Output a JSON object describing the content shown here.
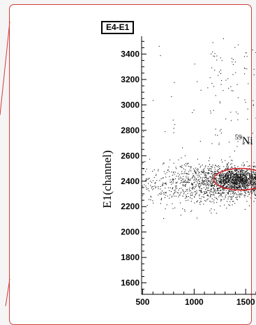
{
  "chart_data": {
    "type": "scatter",
    "title": "E4-E1",
    "xlabel": "",
    "ylabel": "E1(channel)",
    "xlim": [
      490,
      1600
    ],
    "ylim": [
      1510,
      3540
    ],
    "x_ticks": [
      500,
      1000,
      1500
    ],
    "x_tick_labels": [
      "500",
      "1000",
      "1500"
    ],
    "y_ticks": [
      1600,
      1800,
      2000,
      2200,
      2400,
      2600,
      2800,
      3000,
      3200,
      3400
    ],
    "y_tick_labels": [
      "1600",
      "1800",
      "2000",
      "2200",
      "2400",
      "2600",
      "2800",
      "3000",
      "3200",
      "3400"
    ],
    "grid": false,
    "annotations": [
      {
        "mass": "59",
        "element": "Ni",
        "x": 1395,
        "y": 2690
      }
    ],
    "gate_ellipse": {
      "cx": 1450,
      "cy": 2415,
      "rx": 260,
      "ry": 85
    },
    "clusters": [
      {
        "name": "dense-core",
        "cx": 1430,
        "cy": 2410,
        "sx": 170,
        "sy": 48,
        "n": 1400
      },
      {
        "name": "band",
        "cx": 1100,
        "cy": 2380,
        "sx": 380,
        "sy": 90,
        "n": 1000
      },
      {
        "name": "upper-scatter",
        "xmin": 1150,
        "xmax": 1600,
        "ymin": 2600,
        "ymax": 3540,
        "n": 90
      },
      {
        "name": "left-scatter",
        "xmin": 500,
        "xmax": 1150,
        "ymin": 2150,
        "ymax": 3500,
        "n": 25
      }
    ],
    "colors": {
      "points": "#111111",
      "gate": "#d0282c",
      "frame": "#000000"
    }
  }
}
